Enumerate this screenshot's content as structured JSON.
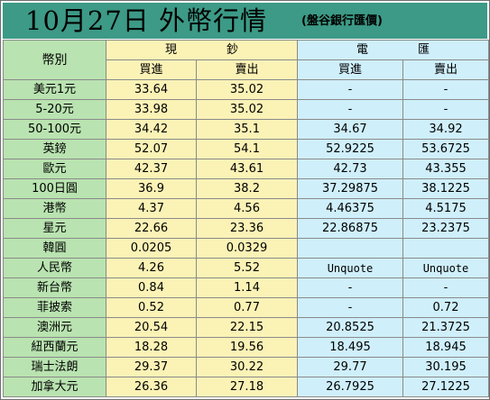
{
  "title": {
    "main": "10月27日 外幣行情",
    "sub": "(盤谷銀行匯價)"
  },
  "header": {
    "currency_label": "幣別",
    "cash_label_1": "現",
    "cash_label_2": "鈔",
    "wire_label_1": "電",
    "wire_label_2": "匯",
    "buy": "買進",
    "sell": "賣出"
  },
  "rows": [
    {
      "name": "美元1元",
      "cash_buy": "33.64",
      "cash_sell": "35.02",
      "wire_buy": "-",
      "wire_sell": "-"
    },
    {
      "name": "5-20元",
      "cash_buy": "33.98",
      "cash_sell": "35.02",
      "wire_buy": "-",
      "wire_sell": "-"
    },
    {
      "name": "50-100元",
      "cash_buy": "34.42",
      "cash_sell": "35.1",
      "wire_buy": "34.67",
      "wire_sell": "34.92"
    },
    {
      "name": "英鎊",
      "cash_buy": "52.07",
      "cash_sell": "54.1",
      "wire_buy": "52.9225",
      "wire_sell": "53.6725"
    },
    {
      "name": "歐元",
      "cash_buy": "42.37",
      "cash_sell": "43.61",
      "wire_buy": "42.73",
      "wire_sell": "43.355"
    },
    {
      "name": "100日圓",
      "cash_buy": "36.9",
      "cash_sell": "38.2",
      "wire_buy": "37.29875",
      "wire_sell": "38.1225"
    },
    {
      "name": "港幣",
      "cash_buy": "4.37",
      "cash_sell": "4.56",
      "wire_buy": "4.46375",
      "wire_sell": "4.5175"
    },
    {
      "name": "星元",
      "cash_buy": "22.66",
      "cash_sell": "23.36",
      "wire_buy": "22.86875",
      "wire_sell": "23.2375"
    },
    {
      "name": "韓圓",
      "cash_buy": "0.0205",
      "cash_sell": "0.0329",
      "wire_buy": "",
      "wire_sell": ""
    },
    {
      "name": "人民幣",
      "cash_buy": "4.26",
      "cash_sell": "5.52",
      "wire_buy": "Unquote",
      "wire_sell": "Unquote"
    },
    {
      "name": "新台幣",
      "cash_buy": "0.84",
      "cash_sell": "1.14",
      "wire_buy": "-",
      "wire_sell": "-"
    },
    {
      "name": "菲披索",
      "cash_buy": "0.52",
      "cash_sell": "0.77",
      "wire_buy": "-",
      "wire_sell": "0.72"
    },
    {
      "name": "澳洲元",
      "cash_buy": "20.54",
      "cash_sell": "22.15",
      "wire_buy": "20.8525",
      "wire_sell": "21.3725"
    },
    {
      "name": "紐西蘭元",
      "cash_buy": "18.28",
      "cash_sell": "19.56",
      "wire_buy": "18.495",
      "wire_sell": "18.945"
    },
    {
      "name": "瑞士法朗",
      "cash_buy": "29.37",
      "cash_sell": "30.22",
      "wire_buy": "29.77",
      "wire_sell": "30.195"
    },
    {
      "name": "加拿大元",
      "cash_buy": "26.36",
      "cash_sell": "27.18",
      "wire_buy": "26.7925",
      "wire_sell": "27.1225"
    }
  ]
}
